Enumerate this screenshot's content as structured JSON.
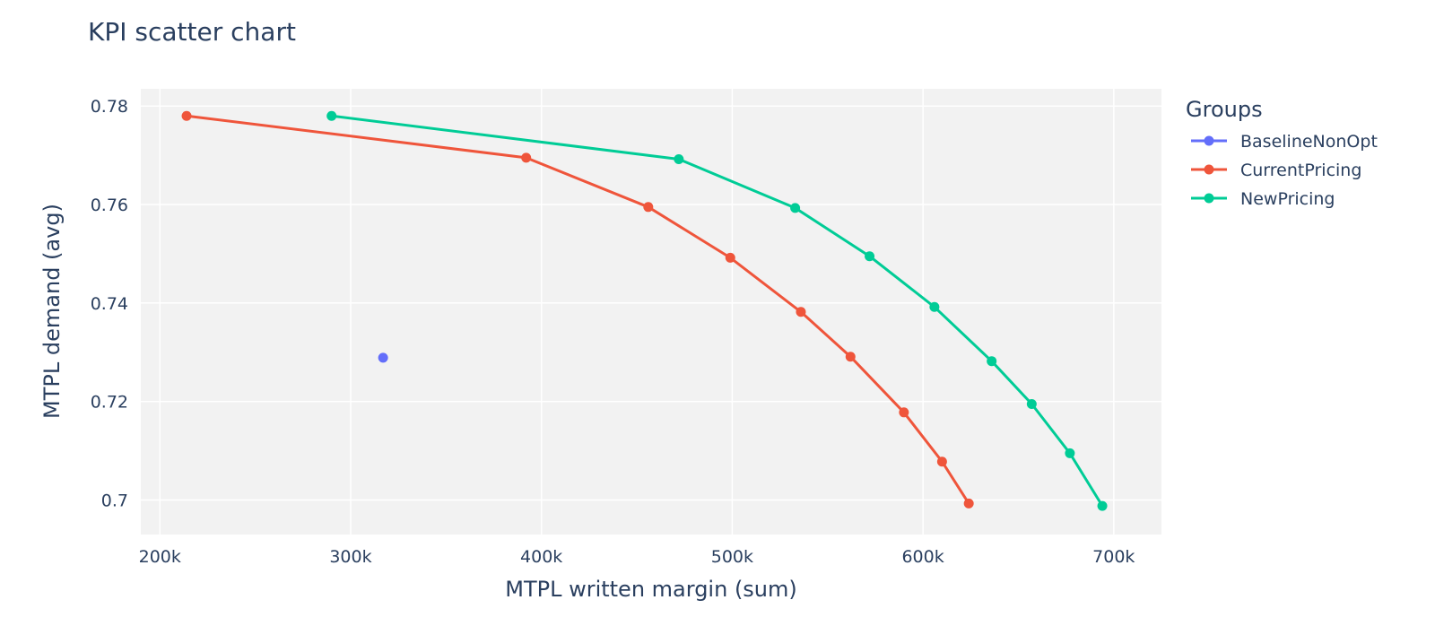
{
  "chart_data": {
    "type": "scatter",
    "title": "KPI scatter chart",
    "xlabel": "MTPL written margin (sum)",
    "ylabel": "MTPL demand (avg)",
    "xlim": [
      190000,
      725000
    ],
    "ylim": [
      0.693,
      0.7835
    ],
    "xticks": [
      200000,
      300000,
      400000,
      500000,
      600000,
      700000
    ],
    "xtick_labels": [
      "200k",
      "300k",
      "400k",
      "500k",
      "600k",
      "700k"
    ],
    "yticks": [
      0.7,
      0.72,
      0.74,
      0.76,
      0.78
    ],
    "ytick_labels": [
      "0.7",
      "0.72",
      "0.74",
      "0.76",
      "0.78"
    ],
    "grid": true,
    "legend": {
      "title": "Groups",
      "position": "right"
    },
    "series": [
      {
        "name": "BaselineNonOpt",
        "color": "#636efa",
        "mode": "markers",
        "points": [
          [
            317000,
            0.7289
          ]
        ]
      },
      {
        "name": "CurrentPricing",
        "color": "#ef553b",
        "mode": "lines+markers",
        "points": [
          [
            214000,
            0.778
          ],
          [
            392000,
            0.7695
          ],
          [
            456000,
            0.7595
          ],
          [
            499000,
            0.7492
          ],
          [
            536000,
            0.7382
          ],
          [
            562000,
            0.7291
          ],
          [
            590000,
            0.7178
          ],
          [
            610000,
            0.7078
          ],
          [
            624000,
            0.6993
          ]
        ]
      },
      {
        "name": "NewPricing",
        "color": "#00cc96",
        "mode": "lines+markers",
        "points": [
          [
            290000,
            0.778
          ],
          [
            472000,
            0.7692
          ],
          [
            533000,
            0.7593
          ],
          [
            572000,
            0.7495
          ],
          [
            606000,
            0.7392
          ],
          [
            636000,
            0.7282
          ],
          [
            657000,
            0.7195
          ],
          [
            677000,
            0.7095
          ],
          [
            694000,
            0.6988
          ]
        ]
      }
    ]
  }
}
